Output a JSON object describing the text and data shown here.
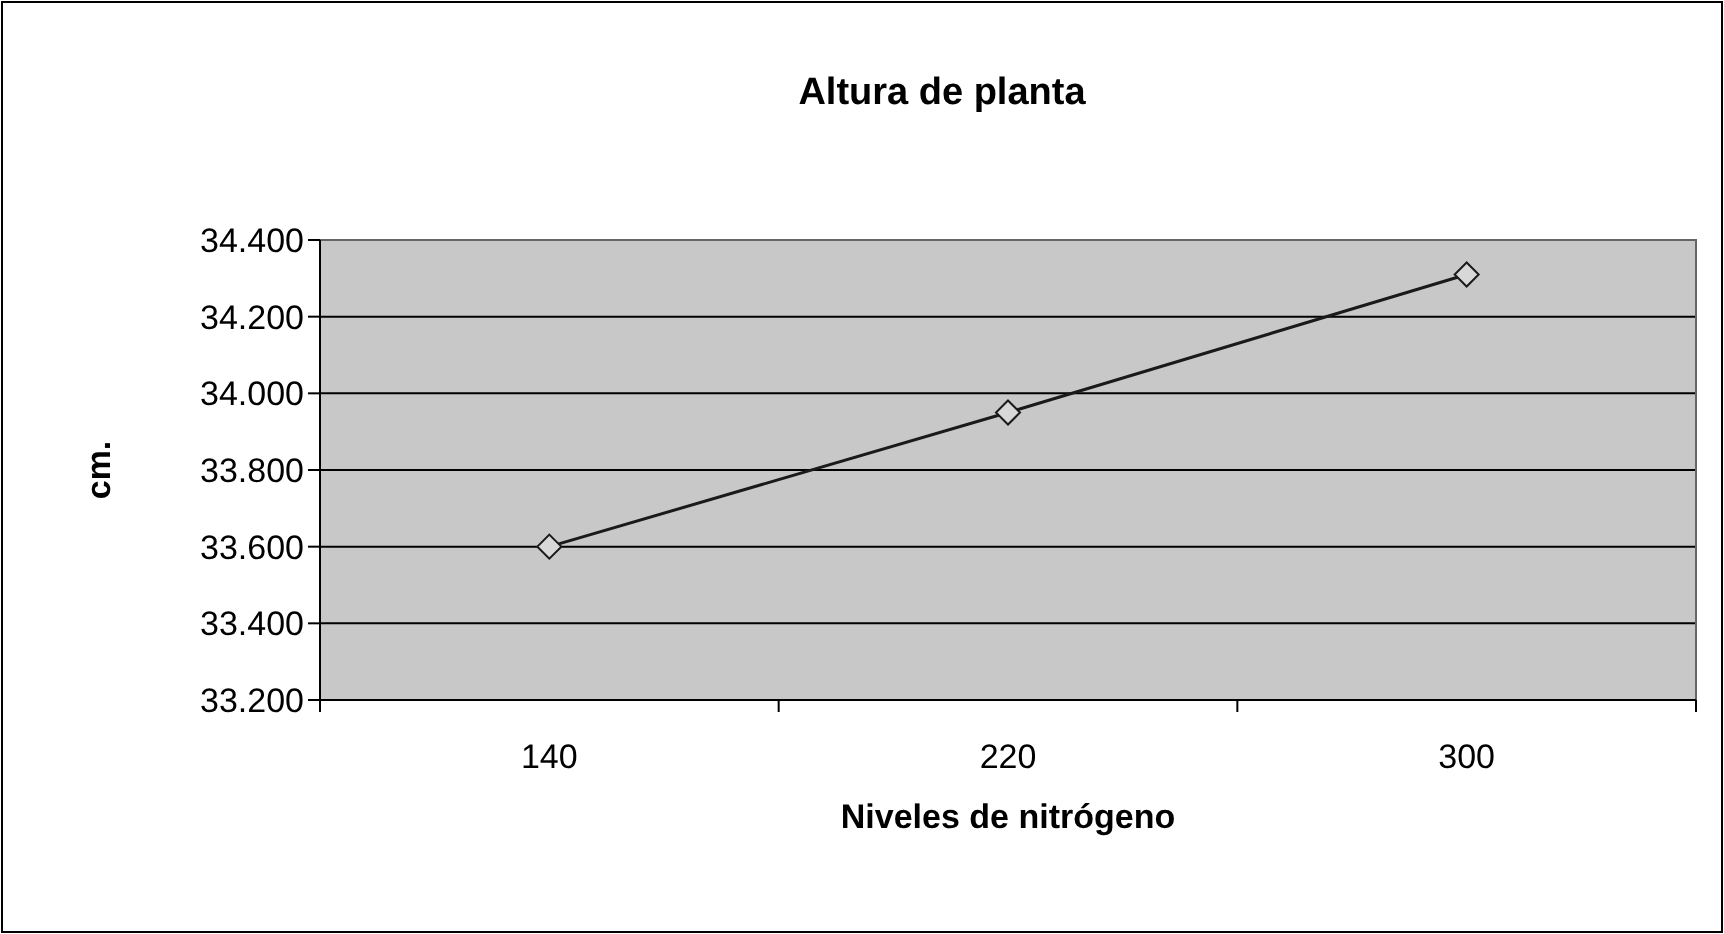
{
  "chart_data": {
    "type": "line",
    "title": "Altura de planta",
    "xlabel": "Niveles de nitrógeno",
    "ylabel": "cm.",
    "categories": [
      "140",
      "220",
      "300"
    ],
    "series": [
      {
        "color": "#1a1a1a",
        "values": [
          33.6,
          33.95,
          34.31
        ]
      }
    ],
    "ylim": [
      33.2,
      34.4
    ],
    "yticks": [
      {
        "value": 33.2,
        "label": "33.200"
      },
      {
        "value": 33.4,
        "label": "33.400"
      },
      {
        "value": 33.6,
        "label": "33.600"
      },
      {
        "value": 33.8,
        "label": "33.800"
      },
      {
        "value": 34.0,
        "label": "34.000"
      },
      {
        "value": 34.2,
        "label": "34.200"
      },
      {
        "value": 34.4,
        "label": "34.400"
      }
    ],
    "grid": "y",
    "marker": "diamond",
    "line_style": "solid"
  }
}
